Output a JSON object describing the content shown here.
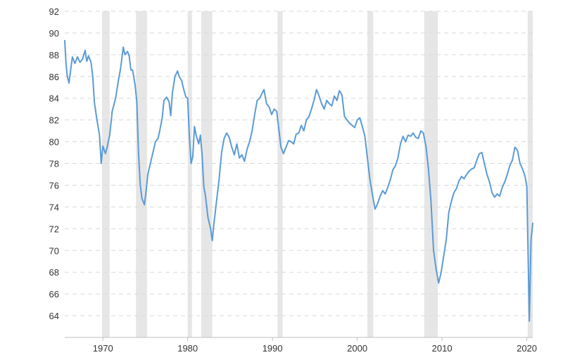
{
  "chart_data": {
    "type": "line",
    "title": "",
    "xlabel": "",
    "ylabel": "",
    "xlim": [
      1965.5,
      2020.7
    ],
    "ylim": [
      62,
      92
    ],
    "y_ticks": [
      64,
      66,
      68,
      70,
      72,
      74,
      76,
      78,
      80,
      82,
      84,
      86,
      88,
      90,
      92
    ],
    "x_ticks": [
      1970,
      1980,
      1990,
      2000,
      2010,
      2020
    ],
    "grid": "horizontal-dashed",
    "legend": "none",
    "colors": {
      "line": "#5b9bd5",
      "recession": "#e6e6e6",
      "grid": "#d9d9d9",
      "axis": "#bfbfbf",
      "text": "#333333"
    },
    "recessions": [
      [
        1969.9,
        1970.8
      ],
      [
        1973.9,
        1975.2
      ],
      [
        1980.0,
        1980.5
      ],
      [
        1981.6,
        1982.9
      ],
      [
        1990.6,
        1991.2
      ],
      [
        2001.2,
        2001.9
      ],
      [
        2007.9,
        2009.5
      ],
      [
        2020.1,
        2020.7
      ]
    ],
    "series": [
      {
        "values": [
          [
            1965.5,
            89.3
          ],
          [
            1965.65,
            87.2
          ],
          [
            1965.8,
            86.0
          ],
          [
            1966.0,
            85.4
          ],
          [
            1966.2,
            86.6
          ],
          [
            1966.4,
            87.8
          ],
          [
            1966.7,
            87.2
          ],
          [
            1967.0,
            87.8
          ],
          [
            1967.3,
            87.3
          ],
          [
            1967.6,
            87.6
          ],
          [
            1967.9,
            88.4
          ],
          [
            1968.1,
            87.4
          ],
          [
            1968.3,
            87.9
          ],
          [
            1968.6,
            87.3
          ],
          [
            1968.8,
            86.0
          ],
          [
            1969.0,
            83.6
          ],
          [
            1969.3,
            82.0
          ],
          [
            1969.6,
            80.6
          ],
          [
            1969.8,
            78.0
          ],
          [
            1970.0,
            79.6
          ],
          [
            1970.3,
            78.9
          ],
          [
            1970.5,
            79.5
          ],
          [
            1970.8,
            80.6
          ],
          [
            1971.1,
            82.8
          ],
          [
            1971.5,
            84.0
          ],
          [
            1971.8,
            85.5
          ],
          [
            1972.1,
            86.8
          ],
          [
            1972.4,
            88.7
          ],
          [
            1972.6,
            88.0
          ],
          [
            1972.9,
            88.3
          ],
          [
            1973.1,
            87.9
          ],
          [
            1973.3,
            86.6
          ],
          [
            1973.5,
            86.6
          ],
          [
            1973.8,
            85.2
          ],
          [
            1974.0,
            83.7
          ],
          [
            1974.2,
            79.0
          ],
          [
            1974.4,
            76.1
          ],
          [
            1974.6,
            74.8
          ],
          [
            1974.9,
            74.2
          ],
          [
            1975.1,
            75.5
          ],
          [
            1975.3,
            77.0
          ],
          [
            1975.6,
            78.0
          ],
          [
            1975.9,
            79.0
          ],
          [
            1976.2,
            80.0
          ],
          [
            1976.5,
            80.3
          ],
          [
            1976.7,
            81.0
          ],
          [
            1977.0,
            82.2
          ],
          [
            1977.2,
            83.8
          ],
          [
            1977.5,
            84.1
          ],
          [
            1977.8,
            83.7
          ],
          [
            1978.0,
            82.4
          ],
          [
            1978.2,
            84.5
          ],
          [
            1978.5,
            86.0
          ],
          [
            1978.8,
            86.5
          ],
          [
            1979.0,
            86.0
          ],
          [
            1979.3,
            85.6
          ],
          [
            1979.5,
            84.9
          ],
          [
            1979.8,
            84.1
          ],
          [
            1980.0,
            84.0
          ],
          [
            1980.2,
            80.5
          ],
          [
            1980.4,
            78.0
          ],
          [
            1980.6,
            78.6
          ],
          [
            1980.8,
            81.4
          ],
          [
            1981.0,
            80.6
          ],
          [
            1981.3,
            79.8
          ],
          [
            1981.5,
            80.6
          ],
          [
            1981.7,
            78.8
          ],
          [
            1981.9,
            75.9
          ],
          [
            1982.1,
            75.0
          ],
          [
            1982.4,
            73.0
          ],
          [
            1982.7,
            72.0
          ],
          [
            1982.9,
            70.9
          ],
          [
            1983.1,
            72.5
          ],
          [
            1983.4,
            74.5
          ],
          [
            1983.7,
            76.5
          ],
          [
            1984.0,
            79.0
          ],
          [
            1984.3,
            80.3
          ],
          [
            1984.6,
            80.8
          ],
          [
            1984.9,
            80.4
          ],
          [
            1985.2,
            79.5
          ],
          [
            1985.5,
            78.8
          ],
          [
            1985.8,
            79.8
          ],
          [
            1986.1,
            78.5
          ],
          [
            1986.4,
            78.8
          ],
          [
            1986.7,
            78.2
          ],
          [
            1987.0,
            79.3
          ],
          [
            1987.3,
            80.0
          ],
          [
            1987.6,
            81.0
          ],
          [
            1987.9,
            82.5
          ],
          [
            1988.2,
            83.8
          ],
          [
            1988.5,
            84.0
          ],
          [
            1988.8,
            84.5
          ],
          [
            1989.0,
            84.8
          ],
          [
            1989.3,
            83.5
          ],
          [
            1989.6,
            83.2
          ],
          [
            1989.9,
            82.5
          ],
          [
            1990.2,
            83.0
          ],
          [
            1990.5,
            82.8
          ],
          [
            1990.7,
            81.5
          ],
          [
            1991.0,
            79.5
          ],
          [
            1991.3,
            78.9
          ],
          [
            1991.6,
            79.5
          ],
          [
            1991.9,
            80.1
          ],
          [
            1992.2,
            80.0
          ],
          [
            1992.5,
            79.8
          ],
          [
            1992.8,
            80.7
          ],
          [
            1993.1,
            80.8
          ],
          [
            1993.4,
            81.5
          ],
          [
            1993.7,
            81.0
          ],
          [
            1994.0,
            82.0
          ],
          [
            1994.3,
            82.3
          ],
          [
            1994.6,
            83.0
          ],
          [
            1994.9,
            83.8
          ],
          [
            1995.2,
            84.8
          ],
          [
            1995.5,
            84.2
          ],
          [
            1995.8,
            83.5
          ],
          [
            1996.1,
            83.0
          ],
          [
            1996.4,
            83.8
          ],
          [
            1996.7,
            83.5
          ],
          [
            1997.0,
            83.3
          ],
          [
            1997.3,
            84.2
          ],
          [
            1997.6,
            83.8
          ],
          [
            1997.9,
            84.7
          ],
          [
            1998.2,
            84.3
          ],
          [
            1998.5,
            82.3
          ],
          [
            1998.8,
            82.0
          ],
          [
            1999.1,
            81.7
          ],
          [
            1999.4,
            81.5
          ],
          [
            1999.7,
            81.3
          ],
          [
            2000.0,
            82.0
          ],
          [
            2000.3,
            82.2
          ],
          [
            2000.6,
            81.4
          ],
          [
            2000.9,
            80.5
          ],
          [
            2001.2,
            78.5
          ],
          [
            2001.5,
            76.5
          ],
          [
            2001.8,
            75.1
          ],
          [
            2002.1,
            73.8
          ],
          [
            2002.4,
            74.3
          ],
          [
            2002.7,
            75.0
          ],
          [
            2003.0,
            75.5
          ],
          [
            2003.3,
            75.2
          ],
          [
            2003.6,
            75.8
          ],
          [
            2003.9,
            76.5
          ],
          [
            2004.2,
            77.4
          ],
          [
            2004.5,
            77.8
          ],
          [
            2004.8,
            78.5
          ],
          [
            2005.1,
            79.8
          ],
          [
            2005.4,
            80.5
          ],
          [
            2005.7,
            80.0
          ],
          [
            2006.0,
            80.6
          ],
          [
            2006.3,
            80.5
          ],
          [
            2006.6,
            80.8
          ],
          [
            2006.9,
            80.4
          ],
          [
            2007.2,
            80.3
          ],
          [
            2007.5,
            81.0
          ],
          [
            2007.8,
            80.8
          ],
          [
            2008.1,
            79.6
          ],
          [
            2008.4,
            77.5
          ],
          [
            2008.7,
            74.5
          ],
          [
            2009.0,
            70.0
          ],
          [
            2009.3,
            68.3
          ],
          [
            2009.6,
            67.0
          ],
          [
            2009.9,
            68.0
          ],
          [
            2010.2,
            69.5
          ],
          [
            2010.5,
            71.0
          ],
          [
            2010.8,
            73.5
          ],
          [
            2011.1,
            74.5
          ],
          [
            2011.4,
            75.3
          ],
          [
            2011.7,
            75.7
          ],
          [
            2012.0,
            76.4
          ],
          [
            2012.3,
            76.8
          ],
          [
            2012.6,
            76.6
          ],
          [
            2012.9,
            77.0
          ],
          [
            2013.2,
            77.3
          ],
          [
            2013.5,
            77.5
          ],
          [
            2013.8,
            77.6
          ],
          [
            2014.1,
            78.3
          ],
          [
            2014.4,
            78.9
          ],
          [
            2014.7,
            79.0
          ],
          [
            2015.0,
            78.0
          ],
          [
            2015.3,
            77.0
          ],
          [
            2015.6,
            76.3
          ],
          [
            2015.9,
            75.3
          ],
          [
            2016.2,
            74.9
          ],
          [
            2016.5,
            75.2
          ],
          [
            2016.8,
            75.0
          ],
          [
            2017.1,
            75.8
          ],
          [
            2017.4,
            76.3
          ],
          [
            2017.7,
            77.0
          ],
          [
            2018.0,
            77.8
          ],
          [
            2018.3,
            78.3
          ],
          [
            2018.6,
            79.5
          ],
          [
            2018.9,
            79.2
          ],
          [
            2019.2,
            78.0
          ],
          [
            2019.5,
            77.5
          ],
          [
            2019.8,
            76.8
          ],
          [
            2020.0,
            75.9
          ],
          [
            2020.3,
            63.5
          ],
          [
            2020.5,
            71.0
          ],
          [
            2020.7,
            72.5
          ]
        ]
      }
    ]
  }
}
